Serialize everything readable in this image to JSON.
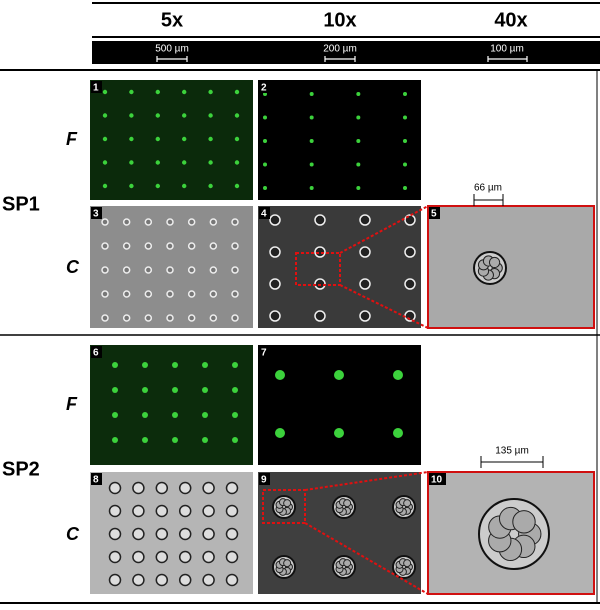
{
  "columns": [
    {
      "magnification": "5x",
      "scale_bar": "500 µm"
    },
    {
      "magnification": "10x",
      "scale_bar": "200 µm"
    },
    {
      "magnification": "40x",
      "scale_bar": "100 µm"
    }
  ],
  "rows": [
    {
      "label": "SP1",
      "channels": [
        "F",
        "C"
      ]
    },
    {
      "label": "SP2",
      "channels": [
        "F",
        "C"
      ]
    }
  ],
  "panels": [
    "1",
    "2",
    "3",
    "4",
    "5",
    "6",
    "7",
    "8",
    "9",
    "10"
  ],
  "annotations": [
    "66 µm",
    "135 µm"
  ]
}
